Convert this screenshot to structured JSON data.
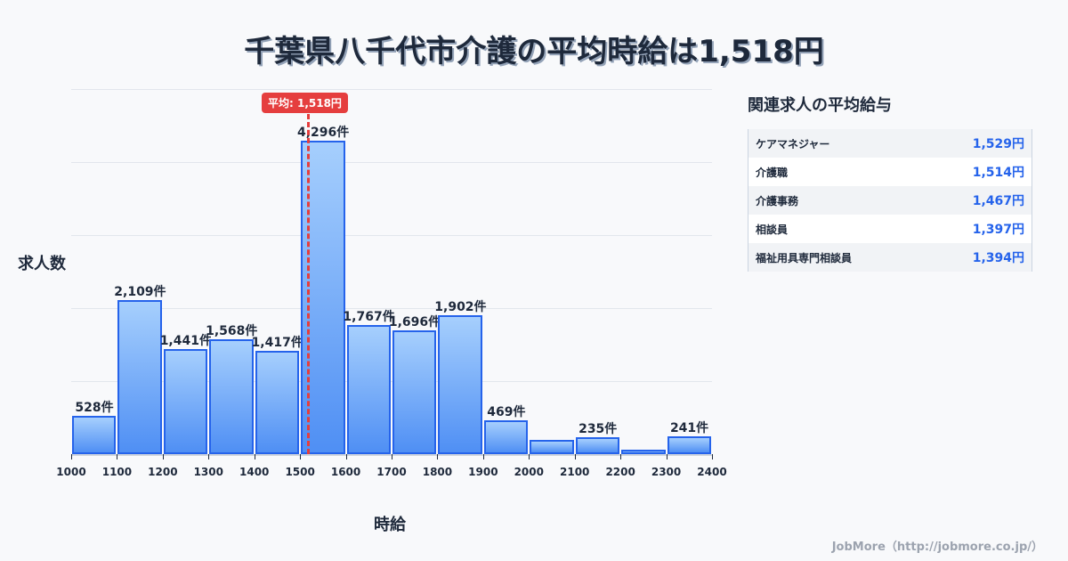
{
  "title": "千葉県八千代市介護の平均時給は1,518円",
  "chart_data": {
    "type": "bar",
    "title": "千葉県八千代市介護の平均時給は1,518円",
    "xlabel": "時給",
    "ylabel": "求人数",
    "bin_edges": [
      1000,
      1100,
      1200,
      1300,
      1400,
      1500,
      1600,
      1700,
      1800,
      1900,
      2000,
      2100,
      2200,
      2300,
      2400
    ],
    "categories": [
      "1000-1100",
      "1100-1200",
      "1200-1300",
      "1300-1400",
      "1400-1500",
      "1500-1600",
      "1600-1700",
      "1700-1800",
      "1800-1900",
      "1900-2000",
      "2000-2100",
      "2100-2200",
      "2200-2300",
      "2300-2400"
    ],
    "values": [
      528,
      2109,
      1441,
      1568,
      1417,
      4296,
      1767,
      1696,
      1902,
      469,
      190,
      235,
      65,
      241
    ],
    "labels": [
      "528件",
      "2,109件",
      "1,441件",
      "1,568件",
      "1,417件",
      "4,296件",
      "1,767件",
      "1,696件",
      "1,902件",
      "469件",
      "",
      "235件",
      "",
      "241件"
    ],
    "ylim": [
      0,
      5000
    ],
    "grid": true,
    "average": {
      "value": 1518,
      "label": "平均: 1,518円",
      "color": "#e53e3e"
    },
    "bar_color": "#2563eb"
  },
  "side": {
    "title": "関連求人の平均給与",
    "rows": [
      {
        "name": "ケアマネジャー",
        "value": "1,529円"
      },
      {
        "name": "介護職",
        "value": "1,514円"
      },
      {
        "name": "介護事務",
        "value": "1,467円"
      },
      {
        "name": "相談員",
        "value": "1,397円"
      },
      {
        "name": "福祉用具専門相談員",
        "value": "1,394円"
      }
    ]
  },
  "footer": "JobMore（http://jobmore.co.jp/）"
}
